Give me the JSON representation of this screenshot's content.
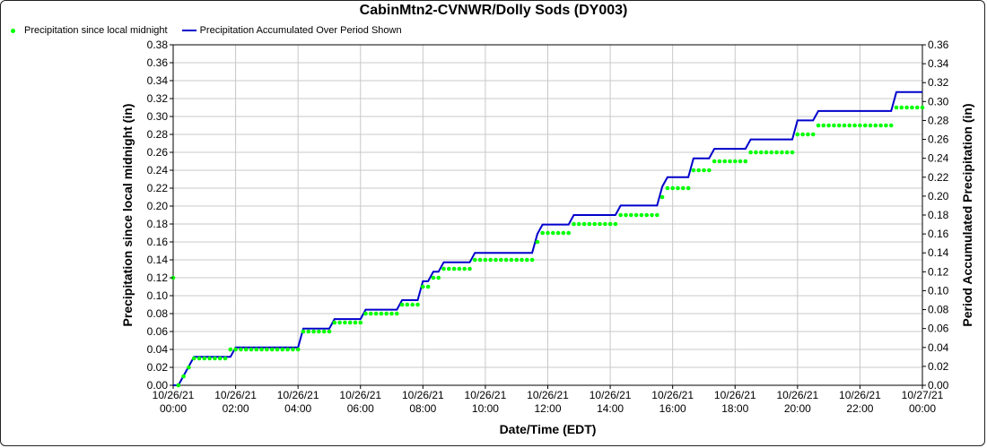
{
  "chart_data": {
    "type": "line",
    "title": "CabinMtn2-CVNWR/Dolly Sods (DY003)",
    "xlabel": "Date/Time (EDT)",
    "ylabel_left": "Precipitation since local midnight (in)",
    "ylabel_right": "Period Accumulated Precipitation (in)",
    "x_tick_labels": [
      [
        "10/26/21",
        "00:00"
      ],
      [
        "10/26/21",
        "02:00"
      ],
      [
        "10/26/21",
        "04:00"
      ],
      [
        "10/26/21",
        "06:00"
      ],
      [
        "10/26/21",
        "08:00"
      ],
      [
        "10/26/21",
        "10:00"
      ],
      [
        "10/26/21",
        "12:00"
      ],
      [
        "10/26/21",
        "14:00"
      ],
      [
        "10/26/21",
        "16:00"
      ],
      [
        "10/26/21",
        "18:00"
      ],
      [
        "10/26/21",
        "20:00"
      ],
      [
        "10/26/21",
        "22:00"
      ],
      [
        "10/27/21",
        "00:00"
      ]
    ],
    "x_range": [
      "10/26/21 00:00",
      "10/27/21 00:00"
    ],
    "ylim_left": [
      0,
      0.38
    ],
    "ylim_right": [
      0,
      0.36
    ],
    "y_tick_step": 0.02,
    "grid": true,
    "legend_position": "top-left",
    "series": [
      {
        "name": "Precipitation since local midnight",
        "axis": "left",
        "style": "points",
        "color": "#00ff00",
        "points": [
          [
            "00:00",
            0.12
          ],
          [
            "00:10",
            0.0
          ],
          [
            "00:20",
            0.01
          ],
          [
            "00:30",
            0.02
          ],
          [
            "00:40",
            0.03
          ],
          [
            "00:50",
            0.03
          ],
          [
            "01:00",
            0.03
          ],
          [
            "01:10",
            0.03
          ],
          [
            "01:20",
            0.03
          ],
          [
            "01:30",
            0.03
          ],
          [
            "01:40",
            0.03
          ],
          [
            "01:50",
            0.04
          ],
          [
            "02:00",
            0.04
          ],
          [
            "02:10",
            0.04
          ],
          [
            "02:20",
            0.04
          ],
          [
            "02:30",
            0.04
          ],
          [
            "02:40",
            0.04
          ],
          [
            "02:50",
            0.04
          ],
          [
            "03:00",
            0.04
          ],
          [
            "03:10",
            0.04
          ],
          [
            "03:20",
            0.04
          ],
          [
            "03:30",
            0.04
          ],
          [
            "03:40",
            0.04
          ],
          [
            "03:50",
            0.04
          ],
          [
            "04:00",
            0.04
          ],
          [
            "04:10",
            0.06
          ],
          [
            "04:20",
            0.06
          ],
          [
            "04:30",
            0.06
          ],
          [
            "04:40",
            0.06
          ],
          [
            "04:50",
            0.06
          ],
          [
            "05:00",
            0.06
          ],
          [
            "05:10",
            0.07
          ],
          [
            "05:20",
            0.07
          ],
          [
            "05:30",
            0.07
          ],
          [
            "05:40",
            0.07
          ],
          [
            "05:50",
            0.07
          ],
          [
            "06:00",
            0.07
          ],
          [
            "06:10",
            0.08
          ],
          [
            "06:20",
            0.08
          ],
          [
            "06:30",
            0.08
          ],
          [
            "06:40",
            0.08
          ],
          [
            "06:50",
            0.08
          ],
          [
            "07:00",
            0.08
          ],
          [
            "07:10",
            0.08
          ],
          [
            "07:20",
            0.09
          ],
          [
            "07:30",
            0.09
          ],
          [
            "07:40",
            0.09
          ],
          [
            "07:50",
            0.09
          ],
          [
            "08:00",
            0.11
          ],
          [
            "08:10",
            0.11
          ],
          [
            "08:20",
            0.12
          ],
          [
            "08:30",
            0.12
          ],
          [
            "08:40",
            0.13
          ],
          [
            "08:50",
            0.13
          ],
          [
            "09:00",
            0.13
          ],
          [
            "09:10",
            0.13
          ],
          [
            "09:20",
            0.13
          ],
          [
            "09:30",
            0.13
          ],
          [
            "09:40",
            0.14
          ],
          [
            "09:50",
            0.14
          ],
          [
            "10:00",
            0.14
          ],
          [
            "10:10",
            0.14
          ],
          [
            "10:20",
            0.14
          ],
          [
            "10:30",
            0.14
          ],
          [
            "10:40",
            0.14
          ],
          [
            "10:50",
            0.14
          ],
          [
            "11:00",
            0.14
          ],
          [
            "11:10",
            0.14
          ],
          [
            "11:20",
            0.14
          ],
          [
            "11:30",
            0.14
          ],
          [
            "11:40",
            0.16
          ],
          [
            "11:50",
            0.17
          ],
          [
            "12:00",
            0.17
          ],
          [
            "12:10",
            0.17
          ],
          [
            "12:20",
            0.17
          ],
          [
            "12:30",
            0.17
          ],
          [
            "12:40",
            0.17
          ],
          [
            "12:50",
            0.18
          ],
          [
            "13:00",
            0.18
          ],
          [
            "13:10",
            0.18
          ],
          [
            "13:20",
            0.18
          ],
          [
            "13:30",
            0.18
          ],
          [
            "13:40",
            0.18
          ],
          [
            "13:50",
            0.18
          ],
          [
            "14:00",
            0.18
          ],
          [
            "14:10",
            0.18
          ],
          [
            "14:20",
            0.19
          ],
          [
            "14:30",
            0.19
          ],
          [
            "14:40",
            0.19
          ],
          [
            "14:50",
            0.19
          ],
          [
            "15:00",
            0.19
          ],
          [
            "15:10",
            0.19
          ],
          [
            "15:20",
            0.19
          ],
          [
            "15:30",
            0.19
          ],
          [
            "15:40",
            0.21
          ],
          [
            "15:50",
            0.22
          ],
          [
            "16:00",
            0.22
          ],
          [
            "16:10",
            0.22
          ],
          [
            "16:20",
            0.22
          ],
          [
            "16:30",
            0.22
          ],
          [
            "16:40",
            0.24
          ],
          [
            "16:50",
            0.24
          ],
          [
            "17:00",
            0.24
          ],
          [
            "17:10",
            0.24
          ],
          [
            "17:20",
            0.25
          ],
          [
            "17:30",
            0.25
          ],
          [
            "17:40",
            0.25
          ],
          [
            "17:50",
            0.25
          ],
          [
            "18:00",
            0.25
          ],
          [
            "18:10",
            0.25
          ],
          [
            "18:20",
            0.25
          ],
          [
            "18:30",
            0.26
          ],
          [
            "18:40",
            0.26
          ],
          [
            "18:50",
            0.26
          ],
          [
            "19:00",
            0.26
          ],
          [
            "19:10",
            0.26
          ],
          [
            "19:20",
            0.26
          ],
          [
            "19:30",
            0.26
          ],
          [
            "19:40",
            0.26
          ],
          [
            "19:50",
            0.26
          ],
          [
            "20:00",
            0.28
          ],
          [
            "20:10",
            0.28
          ],
          [
            "20:20",
            0.28
          ],
          [
            "20:30",
            0.28
          ],
          [
            "20:40",
            0.29
          ],
          [
            "20:50",
            0.29
          ],
          [
            "21:00",
            0.29
          ],
          [
            "21:10",
            0.29
          ],
          [
            "21:20",
            0.29
          ],
          [
            "21:30",
            0.29
          ],
          [
            "21:40",
            0.29
          ],
          [
            "21:50",
            0.29
          ],
          [
            "22:00",
            0.29
          ],
          [
            "22:10",
            0.29
          ],
          [
            "22:20",
            0.29
          ],
          [
            "22:30",
            0.29
          ],
          [
            "22:40",
            0.29
          ],
          [
            "22:50",
            0.29
          ],
          [
            "23:00",
            0.29
          ],
          [
            "23:10",
            0.31
          ],
          [
            "23:20",
            0.31
          ],
          [
            "23:30",
            0.31
          ],
          [
            "23:40",
            0.31
          ],
          [
            "23:50",
            0.31
          ],
          [
            "24:00",
            0.31
          ]
        ]
      },
      {
        "name": "Precipitation Accumulated Over Period Shown",
        "axis": "right",
        "style": "line",
        "color": "#0000cc",
        "points": [
          [
            "00:00",
            0.0
          ],
          [
            "00:10",
            0.0
          ],
          [
            "00:20",
            0.01
          ],
          [
            "00:30",
            0.02
          ],
          [
            "00:40",
            0.03
          ],
          [
            "01:50",
            0.03
          ],
          [
            "02:00",
            0.04
          ],
          [
            "04:00",
            0.04
          ],
          [
            "04:10",
            0.06
          ],
          [
            "05:00",
            0.06
          ],
          [
            "05:10",
            0.07
          ],
          [
            "06:00",
            0.07
          ],
          [
            "06:10",
            0.08
          ],
          [
            "07:10",
            0.08
          ],
          [
            "07:20",
            0.09
          ],
          [
            "07:50",
            0.09
          ],
          [
            "08:00",
            0.11
          ],
          [
            "08:10",
            0.11
          ],
          [
            "08:20",
            0.12
          ],
          [
            "08:30",
            0.12
          ],
          [
            "08:40",
            0.13
          ],
          [
            "09:30",
            0.13
          ],
          [
            "09:40",
            0.14
          ],
          [
            "11:30",
            0.14
          ],
          [
            "11:40",
            0.16
          ],
          [
            "11:50",
            0.17
          ],
          [
            "12:40",
            0.17
          ],
          [
            "12:50",
            0.18
          ],
          [
            "14:10",
            0.18
          ],
          [
            "14:20",
            0.19
          ],
          [
            "15:30",
            0.19
          ],
          [
            "15:40",
            0.21
          ],
          [
            "15:50",
            0.22
          ],
          [
            "16:30",
            0.22
          ],
          [
            "16:40",
            0.24
          ],
          [
            "17:10",
            0.24
          ],
          [
            "17:20",
            0.25
          ],
          [
            "18:20",
            0.25
          ],
          [
            "18:30",
            0.26
          ],
          [
            "19:50",
            0.26
          ],
          [
            "20:00",
            0.28
          ],
          [
            "20:30",
            0.28
          ],
          [
            "20:40",
            0.29
          ],
          [
            "23:00",
            0.29
          ],
          [
            "23:10",
            0.31
          ],
          [
            "24:00",
            0.31
          ]
        ]
      }
    ]
  }
}
